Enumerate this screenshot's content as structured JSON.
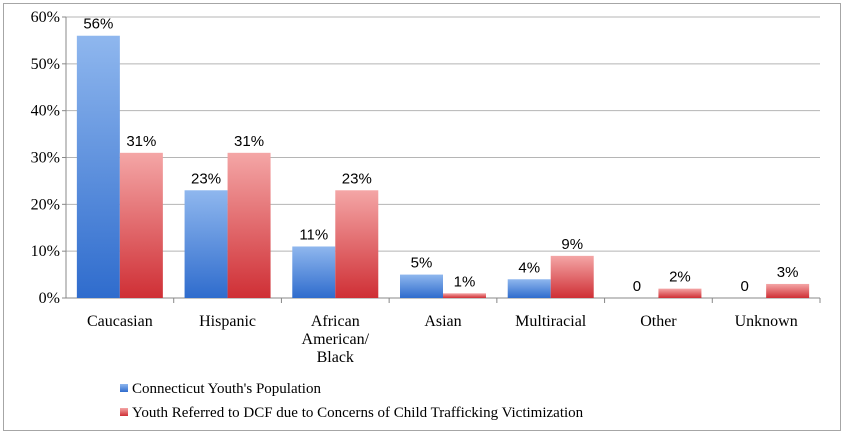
{
  "chart_data": {
    "type": "bar",
    "title": "",
    "xlabel": "",
    "ylabel": "",
    "ylim": [
      0,
      60
    ],
    "yticks": [
      "0%",
      "10%",
      "20%",
      "30%",
      "40%",
      "50%",
      "60%"
    ],
    "grid": true,
    "legend_position": "bottom-left",
    "categories": [
      [
        "Caucasian"
      ],
      [
        "Hispanic"
      ],
      [
        "African",
        "American/",
        "Black"
      ],
      [
        "Asian"
      ],
      [
        "Multiracial"
      ],
      [
        "Other"
      ],
      [
        "Unknown"
      ]
    ],
    "series": [
      {
        "name": "Connecticut Youth's Population",
        "color": "#4f86d6",
        "values": [
          56,
          23,
          11,
          5,
          4,
          0,
          0
        ],
        "labels": [
          "56%",
          "23%",
          "11%",
          "5%",
          "4%",
          "0",
          "0"
        ]
      },
      {
        "name": "Youth Referred to DCF due to Concerns of Child Trafficking Victimization",
        "color": "#e0575a",
        "values": [
          31,
          31,
          23,
          1,
          9,
          2,
          3
        ],
        "labels": [
          "31%",
          "31%",
          "23%",
          "1%",
          "9%",
          "2%",
          "3%"
        ]
      }
    ]
  }
}
